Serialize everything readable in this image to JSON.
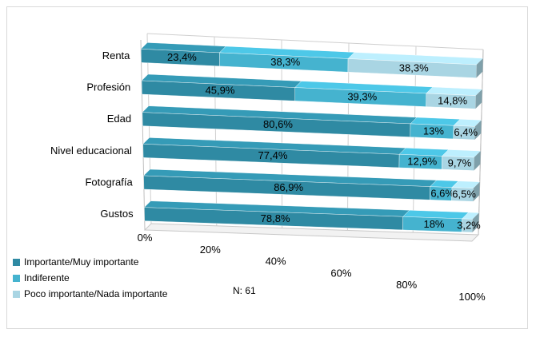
{
  "chart_data": {
    "type": "bar",
    "orientation": "horizontal-stacked-100",
    "categories": [
      "Renta",
      "Profesión",
      "Edad",
      "Nivel educacional",
      "Fotografía",
      "Gustos"
    ],
    "series": [
      {
        "name": "Importante/Muy importante",
        "values": [
          23.4,
          45.9,
          80.6,
          77.4,
          86.9,
          78.8
        ],
        "labels": [
          "23,4%",
          "45,9%",
          "80,6%",
          "77,4%",
          "86,9%",
          "78,8%"
        ],
        "color": "#2f8aa3"
      },
      {
        "name": "Indiferente",
        "values": [
          38.3,
          39.3,
          13,
          12.9,
          6.6,
          18
        ],
        "labels": [
          "38,3%",
          "39,3%",
          "13%",
          "12,9%",
          "6,6%",
          "18%"
        ],
        "color": "#45b3cf"
      },
      {
        "name": "Poco importante/Nada importante",
        "values": [
          38.3,
          14.8,
          6.4,
          9.7,
          6.5,
          3.2
        ],
        "labels": [
          "38,3%",
          "14,8%",
          "6,4%",
          "9,7%",
          "6,5%",
          "3,2%"
        ],
        "color": "#a9d5e3"
      }
    ],
    "x_ticks": [
      "0%",
      "20%",
      "40%",
      "60%",
      "80%",
      "100%"
    ],
    "xlim": [
      0,
      100
    ],
    "legend_position": "bottom-left",
    "grid": true,
    "note": "N: 61"
  }
}
